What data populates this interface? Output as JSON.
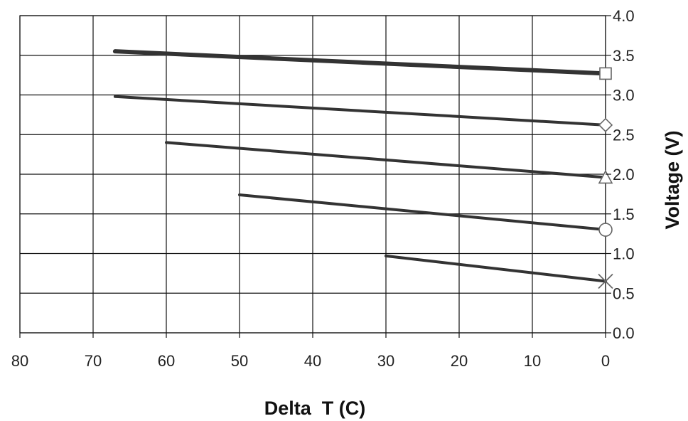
{
  "chart_data": {
    "type": "line",
    "xlabel": "Delta  T (C)",
    "ylabel": "Voltage (V)",
    "xlim": [
      80,
      0
    ],
    "ylim": [
      0,
      4
    ],
    "x_ticks": [
      80,
      70,
      60,
      50,
      40,
      30,
      20,
      10,
      0
    ],
    "x_tick_labels": [
      "80",
      "70",
      "60",
      "50",
      "40",
      "30",
      "20",
      "10",
      "0"
    ],
    "y_ticks": [
      0,
      0.5,
      1,
      1.5,
      2,
      2.5,
      3,
      3.5,
      4
    ],
    "y_tick_labels": [
      "0.0",
      "0.5",
      "1.0",
      "1.5",
      "2.0",
      "2.5",
      "3.0",
      "3.5",
      "4.0"
    ],
    "x_reversed": true,
    "y_axis_side": "right",
    "grid": true,
    "legend": "none",
    "series": [
      {
        "marker": "square",
        "x": [
          67,
          0
        ],
        "y": [
          3.55,
          3.27
        ],
        "thick": true
      },
      {
        "marker": "diamond",
        "x": [
          67,
          0
        ],
        "y": [
          2.98,
          2.62
        ],
        "thick": false
      },
      {
        "marker": "triangle",
        "x": [
          60,
          0
        ],
        "y": [
          2.4,
          1.96
        ],
        "thick": false
      },
      {
        "marker": "circle",
        "x": [
          50,
          0
        ],
        "y": [
          1.74,
          1.3
        ],
        "thick": false
      },
      {
        "marker": "x",
        "x": [
          30,
          0
        ],
        "y": [
          0.97,
          0.65
        ],
        "thick": false
      }
    ],
    "colors": {
      "line": "#333333",
      "grid": "#111111",
      "marker_stroke": "#666666"
    }
  }
}
